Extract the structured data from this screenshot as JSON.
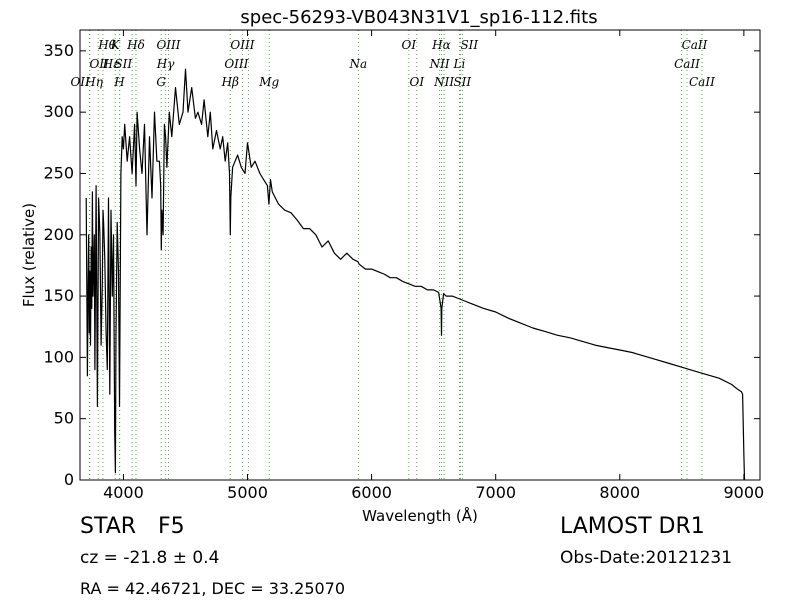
{
  "chart_data": {
    "type": "line",
    "title": "spec-56293-VB043N31V1_sp16-112.fits",
    "xlabel": "Wavelength (Å)",
    "ylabel": "Flux (relative)",
    "xlim": [
      3650,
      9130
    ],
    "ylim": [
      0,
      367
    ],
    "xticks": [
      4000,
      5000,
      6000,
      7000,
      8000,
      9000
    ],
    "yticks": [
      0,
      50,
      100,
      150,
      200,
      250,
      300,
      350
    ],
    "grid": false,
    "line_color": "#000000",
    "marker_color": "#55aa55",
    "series": [
      {
        "x": [
          3700,
          3710,
          3715,
          3720,
          3725,
          3730,
          3735,
          3740,
          3745,
          3750,
          3755,
          3760,
          3765,
          3770,
          3780,
          3790,
          3800,
          3810,
          3820,
          3830,
          3835,
          3840,
          3850,
          3860,
          3870,
          3880,
          3890,
          3900,
          3910,
          3920,
          3930,
          3935,
          3940,
          3950,
          3960,
          3968,
          3980,
          3990,
          4000,
          4010,
          4030,
          4050,
          4070,
          4090,
          4101,
          4110,
          4130,
          4150,
          4170,
          4190,
          4210,
          4230,
          4250,
          4270,
          4290,
          4300,
          4305,
          4310,
          4320,
          4330,
          4340,
          4350,
          4370,
          4390,
          4420,
          4450,
          4480,
          4500,
          4520,
          4550,
          4580,
          4600,
          4630,
          4650,
          4680,
          4700,
          4720,
          4750,
          4780,
          4800,
          4820,
          4840,
          4855,
          4861,
          4865,
          4880,
          4900,
          4920,
          4950,
          4980,
          5000,
          5030,
          5060,
          5100,
          5130,
          5160,
          5172,
          5185,
          5200,
          5250,
          5300,
          5350,
          5400,
          5450,
          5500,
          5550,
          5600,
          5650,
          5700,
          5750,
          5800,
          5850,
          5890,
          5900,
          5950,
          6000,
          6050,
          6100,
          6150,
          6200,
          6250,
          6300,
          6350,
          6400,
          6450,
          6500,
          6540,
          6560,
          6563,
          6566,
          6580,
          6600,
          6650,
          6700,
          6750,
          6800,
          6900,
          7000,
          7100,
          7200,
          7300,
          7400,
          7500,
          7600,
          7700,
          7800,
          7900,
          8000,
          8100,
          8200,
          8300,
          8400,
          8500,
          8600,
          8700,
          8800,
          8900,
          8950,
          8980,
          8990,
          9000,
          9005
        ],
        "y": [
          230,
          85,
          160,
          200,
          120,
          170,
          110,
          190,
          140,
          235,
          150,
          170,
          200,
          90,
          240,
          60,
          230,
          200,
          110,
          160,
          220,
          210,
          180,
          120,
          90,
          230,
          70,
          220,
          150,
          200,
          40,
          6,
          120,
          210,
          170,
          60,
          250,
          280,
          270,
          290,
          260,
          280,
          250,
          290,
          240,
          300,
          270,
          250,
          290,
          200,
          280,
          230,
          300,
          260,
          260,
          240,
          188,
          220,
          200,
          290,
          280,
          255,
          300,
          280,
          320,
          290,
          300,
          335,
          300,
          320,
          295,
          300,
          290,
          310,
          280,
          300,
          270,
          285,
          270,
          280,
          260,
          275,
          250,
          200,
          230,
          255,
          260,
          265,
          255,
          250,
          275,
          255,
          260,
          250,
          245,
          240,
          225,
          245,
          235,
          225,
          220,
          218,
          212,
          205,
          205,
          200,
          190,
          195,
          185,
          180,
          185,
          180,
          178,
          176,
          172,
          172,
          170,
          168,
          165,
          165,
          162,
          160,
          158,
          158,
          155,
          155,
          153,
          140,
          118,
          140,
          152,
          150,
          150,
          148,
          146,
          144,
          140,
          137,
          132,
          128,
          124,
          121,
          118,
          116,
          113,
          110,
          108,
          106,
          104,
          101,
          98,
          95,
          92,
          89,
          86,
          83,
          78,
          74,
          72,
          70,
          20,
          0
        ]
      }
    ],
    "line_markers": [
      {
        "name": "Hθ",
        "x": 3797,
        "row": 0,
        "anchor": "start"
      },
      {
        "name": "K",
        "x": 3934,
        "row": 0,
        "anchor": "middle"
      },
      {
        "name": "Hδ",
        "x": 4101,
        "row": 0,
        "anchor": "middle"
      },
      {
        "name": "OIII",
        "x": 4363,
        "row": 0,
        "anchor": "middle"
      },
      {
        "name": "OII",
        "x": 3727,
        "row": 1,
        "anchor": "start"
      },
      {
        "name": "Hε",
        "x": 3970,
        "row": 1,
        "anchor": "end"
      },
      {
        "name": "SII",
        "x": 4070,
        "row": 1,
        "anchor": "end"
      },
      {
        "name": "Hγ",
        "x": 4340,
        "row": 1,
        "anchor": "middle"
      },
      {
        "name": "Hη",
        "x": 3835,
        "row": 2,
        "anchor": "end"
      },
      {
        "name": "H",
        "x": 3968,
        "row": 2,
        "anchor": "middle"
      },
      {
        "name": "G",
        "x": 4304,
        "row": 2,
        "anchor": "middle"
      },
      {
        "name": "OII",
        "x": 3729,
        "row": 2,
        "anchor": "end"
      },
      {
        "name": "OIII",
        "x": 4959,
        "row": 0,
        "anchor": "middle"
      },
      {
        "name": "OIII",
        "x": 5007,
        "row": 1,
        "anchor": "end"
      },
      {
        "name": "Hβ",
        "x": 4861,
        "row": 2,
        "anchor": "middle"
      },
      {
        "name": "Mg",
        "x": 5175,
        "row": 2,
        "anchor": "middle"
      },
      {
        "name": "Na",
        "x": 5893,
        "row": 1,
        "anchor": "middle"
      },
      {
        "name": "OI",
        "x": 6300,
        "row": 0,
        "anchor": "middle"
      },
      {
        "name": "OI",
        "x": 6364,
        "row": 2,
        "anchor": "middle"
      },
      {
        "name": "Hα",
        "x": 6563,
        "row": 0,
        "anchor": "middle"
      },
      {
        "name": "SII",
        "x": 6716,
        "row": 0,
        "anchor": "start"
      },
      {
        "name": "NII",
        "x": 6548,
        "row": 1,
        "anchor": "middle"
      },
      {
        "name": "Li",
        "x": 6708,
        "row": 1,
        "anchor": "middle"
      },
      {
        "name": "NII",
        "x": 6584,
        "row": 2,
        "anchor": "middle"
      },
      {
        "name": "SII",
        "x": 6731,
        "row": 2,
        "anchor": "middle"
      },
      {
        "name": "CaII",
        "x": 8498,
        "row": 0,
        "anchor": "start"
      },
      {
        "name": "CaII",
        "x": 8542,
        "row": 1,
        "anchor": "middle"
      },
      {
        "name": "CaII",
        "x": 8662,
        "row": 2,
        "anchor": "middle"
      }
    ]
  },
  "info": {
    "class": "STAR",
    "subclass": "F5",
    "redshift": "cz = -21.8 ± 0.4",
    "coords": "RA = 42.46721, DEC = 33.25070",
    "survey": "LAMOST DR1",
    "obs_date": "Obs-Date:20121231"
  }
}
